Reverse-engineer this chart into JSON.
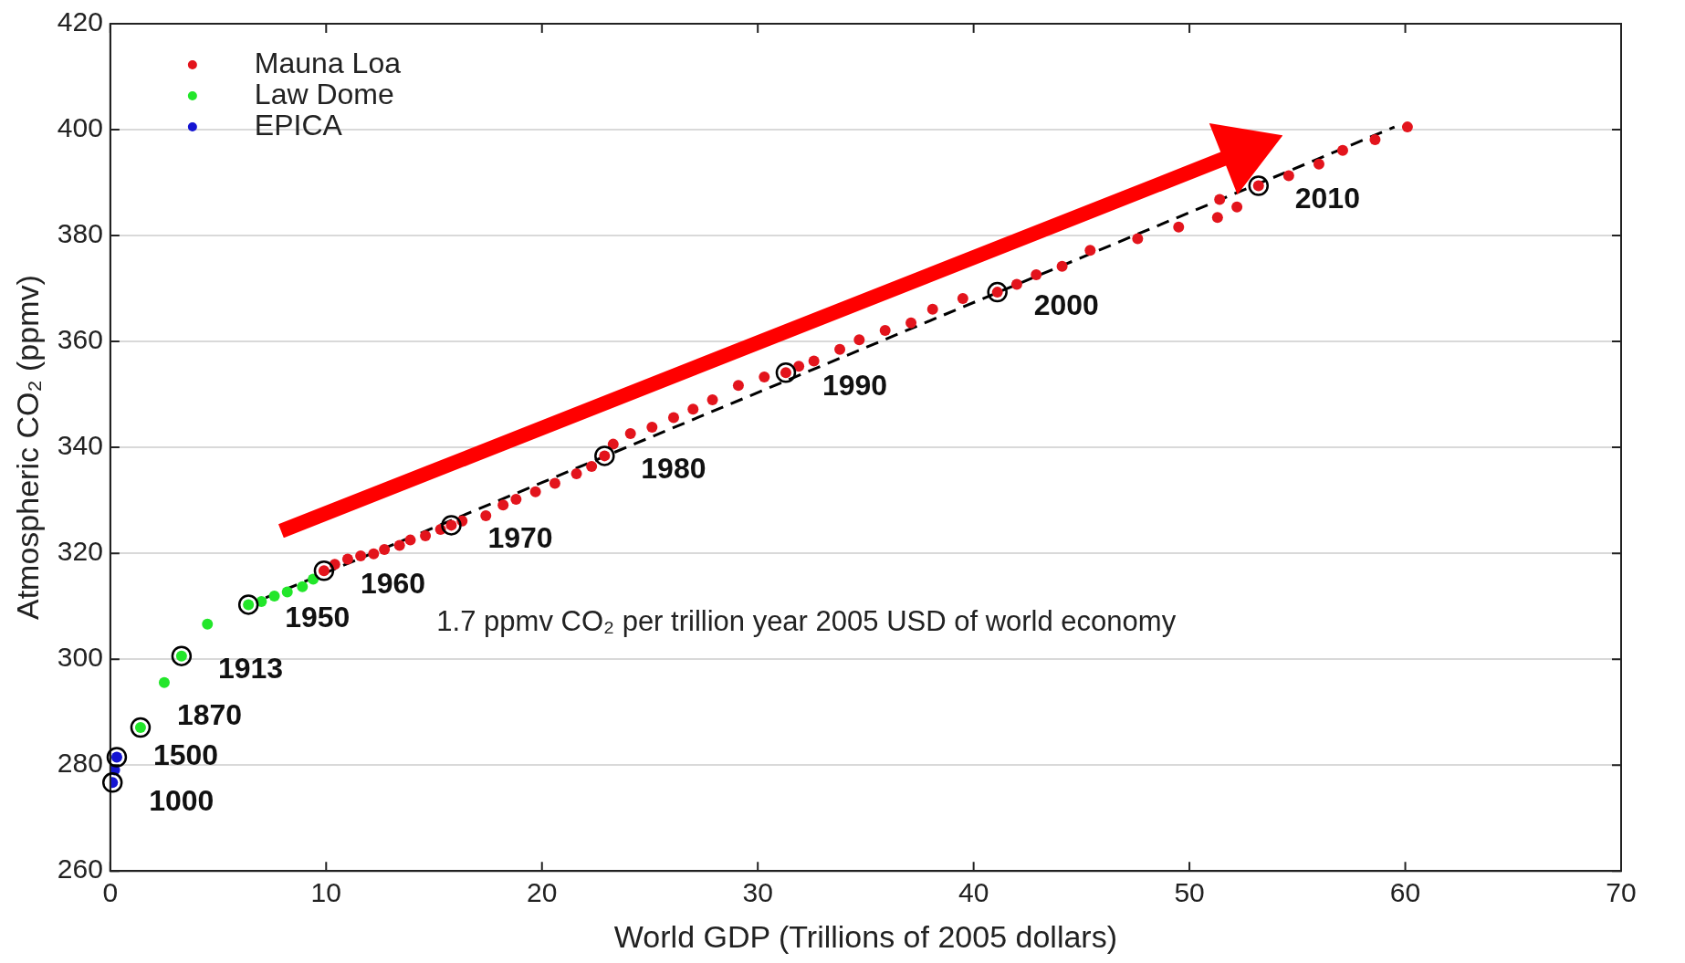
{
  "chart_data": {
    "type": "scatter",
    "xlabel": "World GDP (Trillions of 2005 dollars)",
    "ylabel": "Atmospheric CO₂ (ppmv)",
    "xlim": [
      0,
      70
    ],
    "xticks": [
      0,
      10,
      20,
      30,
      40,
      50,
      60,
      70
    ],
    "ylim": [
      260,
      420
    ],
    "yticks": [
      260,
      280,
      300,
      320,
      340,
      360,
      380,
      400,
      420
    ],
    "grid": "y",
    "legend": "top left",
    "marker": "circle",
    "series": [
      {
        "name": "Mauna Loa",
        "color": "#e3141c",
        "x": [
          9.9,
          10.4,
          11.0,
          11.6,
          12.2,
          12.7,
          13.4,
          13.9,
          14.6,
          15.3,
          15.8,
          16.3,
          17.4,
          18.2,
          18.8,
          19.7,
          20.6,
          21.6,
          22.3,
          22.9,
          23.3,
          24.1,
          25.1,
          26.1,
          27.0,
          27.9,
          29.1,
          30.3,
          31.3,
          31.9,
          32.6,
          33.8,
          34.7,
          35.9,
          37.1,
          38.1,
          39.5,
          41.1,
          42.0,
          42.9,
          44.1,
          45.4,
          47.6,
          49.5,
          51.3,
          51.4,
          52.2,
          53.2,
          54.6,
          56.0,
          57.1,
          58.6,
          60.1
        ],
        "values": [
          316.7,
          317.9,
          318.9,
          319.5,
          319.9,
          320.7,
          321.5,
          322.5,
          323.3,
          324.5,
          325.3,
          326.1,
          327.1,
          329.1,
          330.2,
          331.6,
          333.2,
          335.0,
          336.4,
          338.4,
          340.6,
          342.6,
          343.8,
          345.6,
          347.2,
          349.0,
          351.7,
          353.3,
          354.1,
          355.3,
          356.3,
          358.5,
          360.3,
          362.1,
          363.5,
          366.1,
          368.1,
          369.3,
          370.8,
          372.6,
          374.2,
          377.2,
          379.4,
          381.6,
          383.4,
          386.8,
          385.4,
          389.4,
          391.3,
          393.5,
          396.1,
          398.1,
          400.5
        ]
      },
      {
        "name": "Law Dome",
        "color": "#22e62a",
        "x": [
          1.4,
          2.5,
          3.3,
          4.5,
          6.4,
          7.0,
          7.6,
          8.2,
          8.9,
          9.4
        ],
        "values": [
          287.1,
          295.6,
          300.6,
          306.6,
          310.3,
          310.9,
          311.9,
          312.7,
          313.7,
          315.1
        ]
      },
      {
        "name": "EPICA",
        "color": "#1414d2",
        "x": [
          0.1,
          0.2,
          0.3
        ],
        "values": [
          276.7,
          279.1,
          281.5
        ]
      },
      {
        "type": "line",
        "color": "#000000",
        "line_style": "dashed",
        "marker": "none",
        "x": [
          7.2,
          59.5
        ],
        "values": [
          311.6,
          400.5
        ]
      }
    ],
    "annotations": [
      {
        "text": "1000",
        "x": 0.1,
        "y": 276.7
      },
      {
        "text": "1500",
        "x": 0.3,
        "y": 281.5
      },
      {
        "text": "1870",
        "x": 1.4,
        "y": 287.1
      },
      {
        "text": "1913",
        "x": 3.3,
        "y": 300.6
      },
      {
        "text": "1950",
        "x": 6.4,
        "y": 310.3
      },
      {
        "text": "1960",
        "x": 9.9,
        "y": 316.7
      },
      {
        "text": "1970",
        "x": 15.8,
        "y": 325.3
      },
      {
        "text": "1980",
        "x": 22.9,
        "y": 338.4
      },
      {
        "text": "1990",
        "x": 31.3,
        "y": 354.1
      },
      {
        "text": "2000",
        "x": 41.1,
        "y": 369.3
      },
      {
        "text": "2010",
        "x": 53.2,
        "y": 389.4
      },
      "1.7 ppmv CO₂ per trillion year 2005 USD of world economy"
    ]
  }
}
